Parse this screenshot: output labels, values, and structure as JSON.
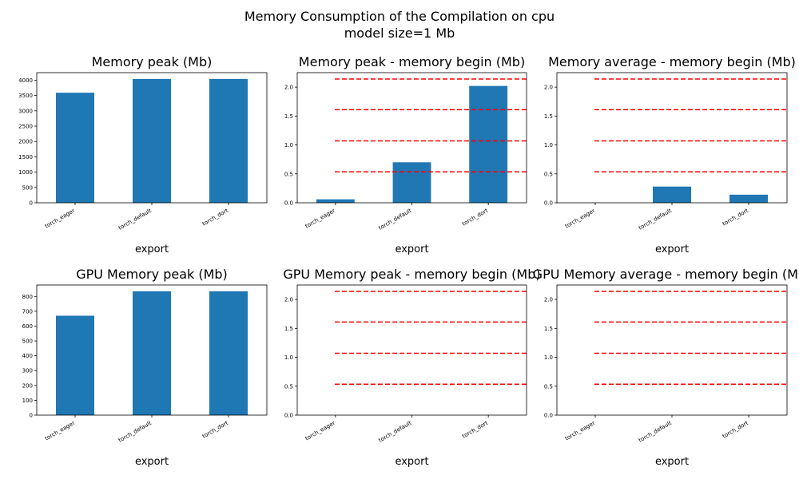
{
  "figure": {
    "title_line1": "Memory Consumption of the Compilation on cpu",
    "title_line2": "model size=1 Mb"
  },
  "colors": {
    "bar": "#1f77b4",
    "hline": "#ff0000"
  },
  "chart_data": [
    {
      "type": "bar",
      "title": "Memory peak (Mb)",
      "xlabel": "export",
      "ylabel": "",
      "categories": [
        "torch_eager",
        "torch_default",
        "torch_dort"
      ],
      "values": [
        3590,
        4040,
        4040
      ],
      "ylim": [
        0,
        4245
      ],
      "yticks": [
        0,
        500,
        1000,
        1500,
        2000,
        2500,
        3000,
        3500,
        4000
      ],
      "hlines": []
    },
    {
      "type": "bar",
      "title": "Memory peak - memory begin (Mb)",
      "xlabel": "export",
      "ylabel": "",
      "categories": [
        "torch_eager",
        "torch_default",
        "torch_dort"
      ],
      "values": [
        0.06,
        0.7,
        2.02
      ],
      "ylim": [
        0,
        2.25
      ],
      "yticks": [
        0.0,
        0.5,
        1.0,
        1.5,
        2.0
      ],
      "hlines": [
        0.535,
        1.07,
        1.61,
        2.14
      ]
    },
    {
      "type": "bar",
      "title": "Memory average - memory begin (Mb)",
      "xlabel": "export",
      "ylabel": "",
      "categories": [
        "torch_eager",
        "torch_default",
        "torch_dort"
      ],
      "values": [
        0.0,
        0.28,
        0.14
      ],
      "ylim": [
        0,
        2.25
      ],
      "yticks": [
        0.0,
        0.5,
        1.0,
        1.5,
        2.0
      ],
      "hlines": [
        0.535,
        1.07,
        1.61,
        2.14
      ]
    },
    {
      "type": "bar",
      "title": "GPU Memory peak (Mb)",
      "xlabel": "export",
      "ylabel": "",
      "categories": [
        "torch_eager",
        "torch_default",
        "torch_dort"
      ],
      "values": [
        670,
        835,
        835
      ],
      "ylim": [
        0,
        877
      ],
      "yticks": [
        0,
        100,
        200,
        300,
        400,
        500,
        600,
        700,
        800
      ],
      "hlines": []
    },
    {
      "type": "bar",
      "title": "GPU Memory peak - memory begin (Mb)",
      "xlabel": "export",
      "ylabel": "",
      "categories": [
        "torch_eager",
        "torch_default",
        "torch_dort"
      ],
      "values": [
        0,
        0,
        0
      ],
      "ylim": [
        0,
        2.25
      ],
      "yticks": [
        0.0,
        0.5,
        1.0,
        1.5,
        2.0
      ],
      "hlines": [
        0.535,
        1.07,
        1.61,
        2.14
      ]
    },
    {
      "type": "bar",
      "title": "GPU Memory average - memory begin (Mb)",
      "xlabel": "export",
      "ylabel": "",
      "categories": [
        "torch_eager",
        "torch_default",
        "torch_dort"
      ],
      "values": [
        0,
        0,
        0
      ],
      "ylim": [
        0,
        2.25
      ],
      "yticks": [
        0.0,
        0.5,
        1.0,
        1.5,
        2.0
      ],
      "hlines": [
        0.535,
        1.07,
        1.61,
        2.14
      ]
    }
  ]
}
